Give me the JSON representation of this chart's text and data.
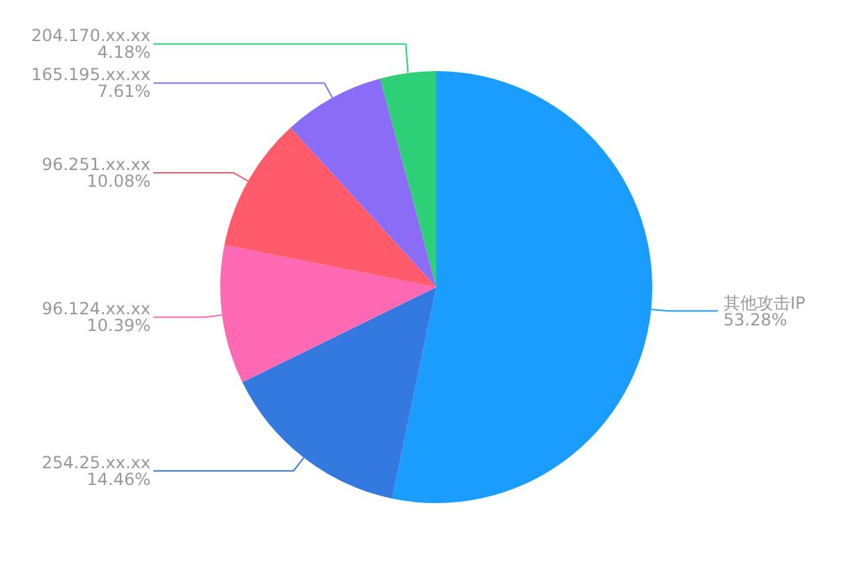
{
  "chart_data": {
    "type": "pie",
    "categories": [
      "其他攻击IP",
      "254.25.xx.xx",
      "96.124.xx.xx",
      "96.251.xx.xx",
      "165.195.xx.xx",
      "204.170.xx.xx"
    ],
    "values": [
      53.28,
      14.46,
      10.39,
      10.08,
      7.61,
      4.18
    ],
    "colors": [
      "#1a9dff",
      "#3479e0",
      "#ff69b4",
      "#ff5b6b",
      "#8b6cf6",
      "#2dcf77"
    ],
    "value_labels": [
      "53.28%",
      "14.46%",
      "10.39%",
      "10.08%",
      "7.61%",
      "4.18%"
    ],
    "legend": false
  }
}
